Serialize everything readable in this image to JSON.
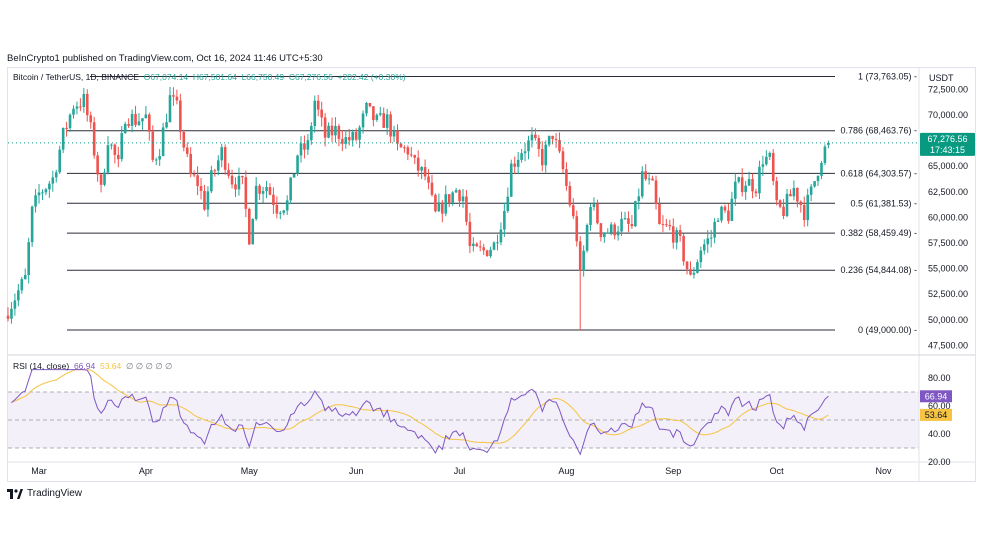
{
  "publisher": "BeInCrypto1 published on TradingView.com, Oct 16, 2024 11:46 UTC+5:30",
  "legend": {
    "symbol": "Bitcoin / TetherUS, 1D, BINANCE",
    "open": "O67,074.14",
    "high": "H67,501.64",
    "low": "L66,750.49",
    "close": "C67,276.56",
    "change": "+202.42 (+0.30%)"
  },
  "unit": "USDT",
  "price_badge": {
    "price": "67,276.56",
    "countdown": "17:43:15"
  },
  "rsi_legend": {
    "label": "RSI (14, close)",
    "rsi": "66.94",
    "ma": "53.64",
    "extras": "∅ ∅ ∅ ∅ ∅"
  },
  "brand": "TradingView",
  "colors": {
    "up": "#26a69a",
    "down": "#ef5350",
    "rsi": "#7e57c2",
    "rsi_ma": "#f6c343",
    "badge": "#089981"
  },
  "chart_data": [
    {
      "type": "candlestick",
      "title": "Bitcoin / TetherUS, 1D, BINANCE",
      "ylim": [
        47000,
        75500
      ],
      "y_ticks": [
        "72,500.00",
        "70,000.00",
        "67,500.00",
        "65,000.00",
        "62,500.00",
        "60,000.00",
        "57,500.00",
        "55,000.00",
        "52,500.00",
        "50,000.00",
        "47,500.00"
      ],
      "x_ticks": [
        "Mar",
        "Apr",
        "May",
        "Jun",
        "Jul",
        "Aug",
        "Sep",
        "Oct",
        "Nov"
      ],
      "x_range": [
        "2024-02-21",
        "2024-11-11"
      ],
      "close_path": [
        [
          "2024-02-21",
          51000
        ],
        [
          "2024-02-26",
          54000
        ],
        [
          "2024-02-28",
          60500
        ],
        [
          "2024-03-01",
          62300
        ],
        [
          "2024-03-05",
          63800
        ],
        [
          "2024-03-08",
          68000
        ],
        [
          "2024-03-11",
          71000
        ],
        [
          "2024-03-14",
          71400
        ],
        [
          "2024-03-16",
          68500
        ],
        [
          "2024-03-19",
          62500
        ],
        [
          "2024-03-21",
          67800
        ],
        [
          "2024-03-24",
          65000
        ],
        [
          "2024-03-26",
          70000
        ],
        [
          "2024-03-29",
          69500
        ],
        [
          "2024-04-01",
          69800
        ],
        [
          "2024-04-03",
          65500
        ],
        [
          "2024-04-05",
          66800
        ],
        [
          "2024-04-08",
          71600
        ],
        [
          "2024-04-10",
          70600
        ],
        [
          "2024-04-12",
          67000
        ],
        [
          "2024-04-14",
          64000
        ],
        [
          "2024-04-16",
          63400
        ],
        [
          "2024-04-18",
          61300
        ],
        [
          "2024-04-20",
          63800
        ],
        [
          "2024-04-23",
          66400
        ],
        [
          "2024-04-26",
          63700
        ],
        [
          "2024-04-29",
          63100
        ],
        [
          "2024-05-01",
          58200
        ],
        [
          "2024-05-03",
          62900
        ],
        [
          "2024-05-06",
          63100
        ],
        [
          "2024-05-09",
          61000
        ],
        [
          "2024-05-12",
          61400
        ],
        [
          "2024-05-15",
          66200
        ],
        [
          "2024-05-18",
          67000
        ],
        [
          "2024-05-20",
          71400
        ],
        [
          "2024-05-23",
          67900
        ],
        [
          "2024-05-26",
          68500
        ],
        [
          "2024-05-29",
          67600
        ],
        [
          "2024-06-01",
          67700
        ],
        [
          "2024-06-04",
          70500
        ],
        [
          "2024-06-07",
          69300
        ],
        [
          "2024-06-10",
          69500
        ],
        [
          "2024-06-13",
          66700
        ],
        [
          "2024-06-16",
          66600
        ],
        [
          "2024-06-18",
          65100
        ],
        [
          "2024-06-21",
          64000
        ],
        [
          "2024-06-24",
          60200
        ],
        [
          "2024-06-27",
          61600
        ],
        [
          "2024-06-30",
          62700
        ],
        [
          "2024-07-02",
          62100
        ],
        [
          "2024-07-04",
          57000
        ],
        [
          "2024-07-05",
          56600
        ],
        [
          "2024-07-08",
          56700
        ],
        [
          "2024-07-11",
          57300
        ],
        [
          "2024-07-14",
          60800
        ],
        [
          "2024-07-16",
          65000
        ],
        [
          "2024-07-19",
          66600
        ],
        [
          "2024-07-22",
          67500
        ],
        [
          "2024-07-25",
          65700
        ],
        [
          "2024-07-28",
          68200
        ],
        [
          "2024-07-31",
          64600
        ],
        [
          "2024-08-02",
          61400
        ],
        [
          "2024-08-04",
          58100
        ],
        [
          "2024-08-05",
          54000
        ],
        [
          "2024-08-08",
          61700
        ],
        [
          "2024-08-11",
          58700
        ],
        [
          "2024-08-14",
          58700
        ],
        [
          "2024-08-17",
          59400
        ],
        [
          "2024-08-20",
          59000
        ],
        [
          "2024-08-23",
          64100
        ],
        [
          "2024-08-26",
          62800
        ],
        [
          "2024-08-28",
          59000
        ],
        [
          "2024-08-31",
          58900
        ],
        [
          "2024-09-03",
          57400
        ],
        [
          "2024-09-06",
          53900
        ],
        [
          "2024-09-09",
          57000
        ],
        [
          "2024-09-12",
          58100
        ],
        [
          "2024-09-14",
          60500
        ],
        [
          "2024-09-17",
          60300
        ],
        [
          "2024-09-19",
          62900
        ],
        [
          "2024-09-22",
          63500
        ],
        [
          "2024-09-25",
          63100
        ],
        [
          "2024-09-27",
          65800
        ],
        [
          "2024-09-29",
          65600
        ],
        [
          "2024-10-01",
          60800
        ],
        [
          "2024-10-03",
          60700
        ],
        [
          "2024-10-06",
          62800
        ],
        [
          "2024-10-09",
          60600
        ],
        [
          "2024-10-11",
          62400
        ],
        [
          "2024-10-14",
          66000
        ],
        [
          "2024-10-16",
          67276.56
        ]
      ],
      "current_price": 67276.56,
      "fibonacci_levels": [
        {
          "label": "1 (73,763.05)",
          "value": 73763.05
        },
        {
          "label": "0.786 (68,463.76)",
          "value": 68463.76
        },
        {
          "label": "0.618 (64,303.57)",
          "value": 64303.57
        },
        {
          "label": "0.5 (61,381.53)",
          "value": 61381.53
        },
        {
          "label": "0.382 (58,459.49)",
          "value": 58459.49
        },
        {
          "label": "0.236 (54,844.08)",
          "value": 54844.08
        },
        {
          "label": "0 (49,000.00)",
          "value": 49000
        }
      ]
    },
    {
      "type": "line",
      "title": "RSI (14, close)",
      "ylim": [
        20,
        90
      ],
      "y_ticks": [
        "80.00",
        "60.00",
        "40.00",
        "20.00"
      ],
      "bands": [
        70,
        50,
        30
      ],
      "series": [
        {
          "name": "RSI (14, close)",
          "current": 66.94
        },
        {
          "name": "MA",
          "current": 53.64
        }
      ]
    }
  ]
}
